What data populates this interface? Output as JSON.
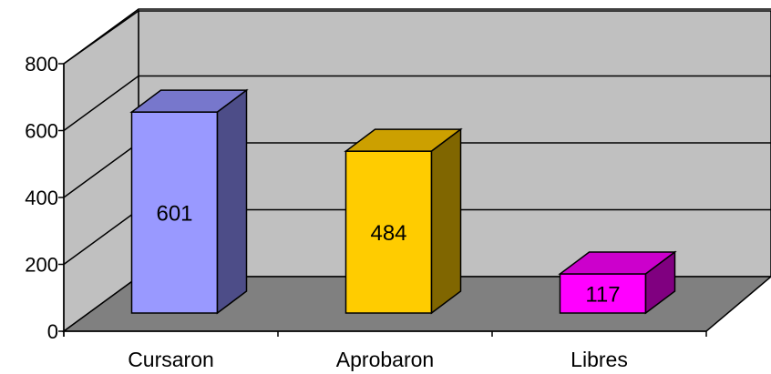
{
  "chart_data": {
    "type": "bar",
    "categories": [
      "Cursaron",
      "Aprobaron",
      "Libres"
    ],
    "values": [
      601,
      484,
      117
    ],
    "data_labels": [
      "601",
      "484",
      "117"
    ],
    "yticks": [
      0,
      200,
      400,
      600,
      800
    ],
    "ytick_labels": [
      "0",
      "200",
      "400",
      "600",
      "800"
    ],
    "ylim": [
      0,
      800
    ],
    "grid": true,
    "style": "3d",
    "colors": {
      "bars": [
        {
          "front": "#9999FF",
          "top": "#7777CC",
          "side": "#4D4D88"
        },
        {
          "front": "#FFCC00",
          "top": "#CCA000",
          "side": "#806600"
        },
        {
          "front": "#FF00FF",
          "top": "#CC00CC",
          "side": "#800080"
        }
      ],
      "back_wall": "#C0C0C0",
      "side_wall": "#C0C0C0",
      "floor": "#808080",
      "gridline": "#000000"
    }
  }
}
